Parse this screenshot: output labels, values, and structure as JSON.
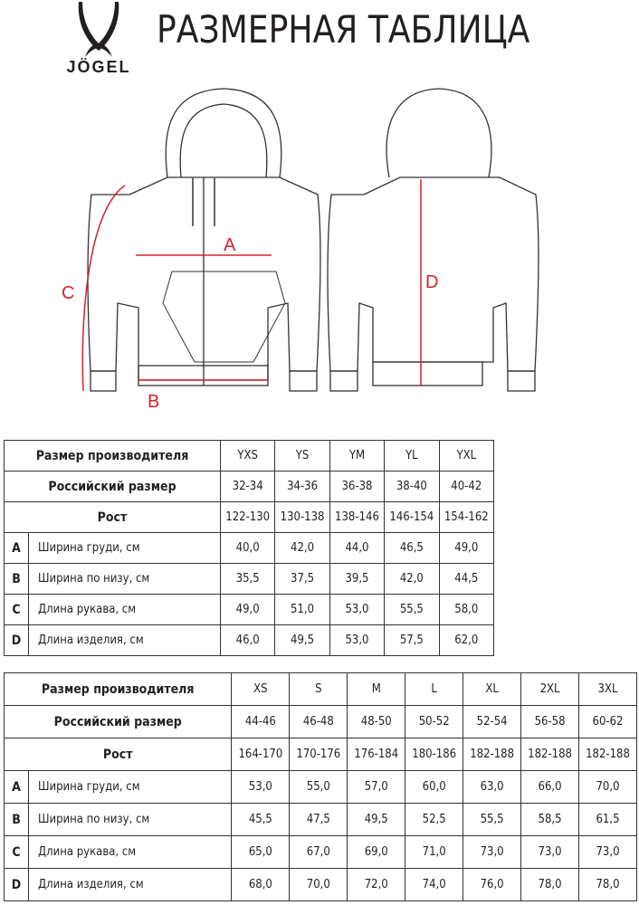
{
  "brand": {
    "logo_text": "JÖGEL"
  },
  "title": "РАЗМЕРНАЯ ТАБЛИЦА",
  "diagram": {
    "labels": {
      "a": "A",
      "b": "B",
      "c": "C",
      "d": "D"
    },
    "accent_color": "#d2232a"
  },
  "tables": [
    {
      "header": "Размер производителя",
      "sizes": [
        "YXS",
        "YS",
        "YM",
        "YL",
        "YXL"
      ],
      "russian_label": "Российский размер",
      "russian": [
        "32-34",
        "34-36",
        "36-38",
        "38-40",
        "40-42"
      ],
      "height_label": "Рост",
      "heights": [
        "122-130",
        "130-138",
        "138-146",
        "146-154",
        "154-162"
      ],
      "rows": [
        {
          "letter": "A",
          "label": "Ширина груди, см",
          "values": [
            "40,0",
            "42,0",
            "44,0",
            "46,5",
            "49,0"
          ]
        },
        {
          "letter": "B",
          "label": "Ширина по низу, см",
          "values": [
            "35,5",
            "37,5",
            "39,5",
            "42,0",
            "44,5"
          ]
        },
        {
          "letter": "C",
          "label": "Длина рукава, см",
          "values": [
            "49,0",
            "51,0",
            "53,0",
            "55,5",
            "58,0"
          ]
        },
        {
          "letter": "D",
          "label": "Длина изделия, см",
          "values": [
            "46,0",
            "49,5",
            "53,0",
            "57,5",
            "62,0"
          ]
        }
      ]
    },
    {
      "header": "Размер производителя",
      "sizes": [
        "XS",
        "S",
        "M",
        "L",
        "XL",
        "2XL",
        "3XL"
      ],
      "russian_label": "Российский размер",
      "russian": [
        "44-46",
        "46-48",
        "48-50",
        "50-52",
        "52-54",
        "56-58",
        "60-62"
      ],
      "height_label": "Рост",
      "heights": [
        "164-170",
        "170-176",
        "176-184",
        "180-186",
        "182-188",
        "182-188",
        "182-188"
      ],
      "rows": [
        {
          "letter": "A",
          "label": "Ширина груди, см",
          "values": [
            "53,0",
            "55,0",
            "57,0",
            "60,0",
            "63,0",
            "66,0",
            "70,0"
          ]
        },
        {
          "letter": "B",
          "label": "Ширина по низу, см",
          "values": [
            "45,5",
            "47,5",
            "49,5",
            "52,5",
            "55,5",
            "58,5",
            "61,5"
          ]
        },
        {
          "letter": "C",
          "label": "Длина рукава, см",
          "values": [
            "65,0",
            "67,0",
            "69,0",
            "71,0",
            "73,0",
            "73,0",
            "73,0"
          ]
        },
        {
          "letter": "D",
          "label": "Длина изделия, см",
          "values": [
            "68,0",
            "70,0",
            "72,0",
            "74,0",
            "76,0",
            "78,0",
            "78,0"
          ]
        }
      ]
    }
  ]
}
